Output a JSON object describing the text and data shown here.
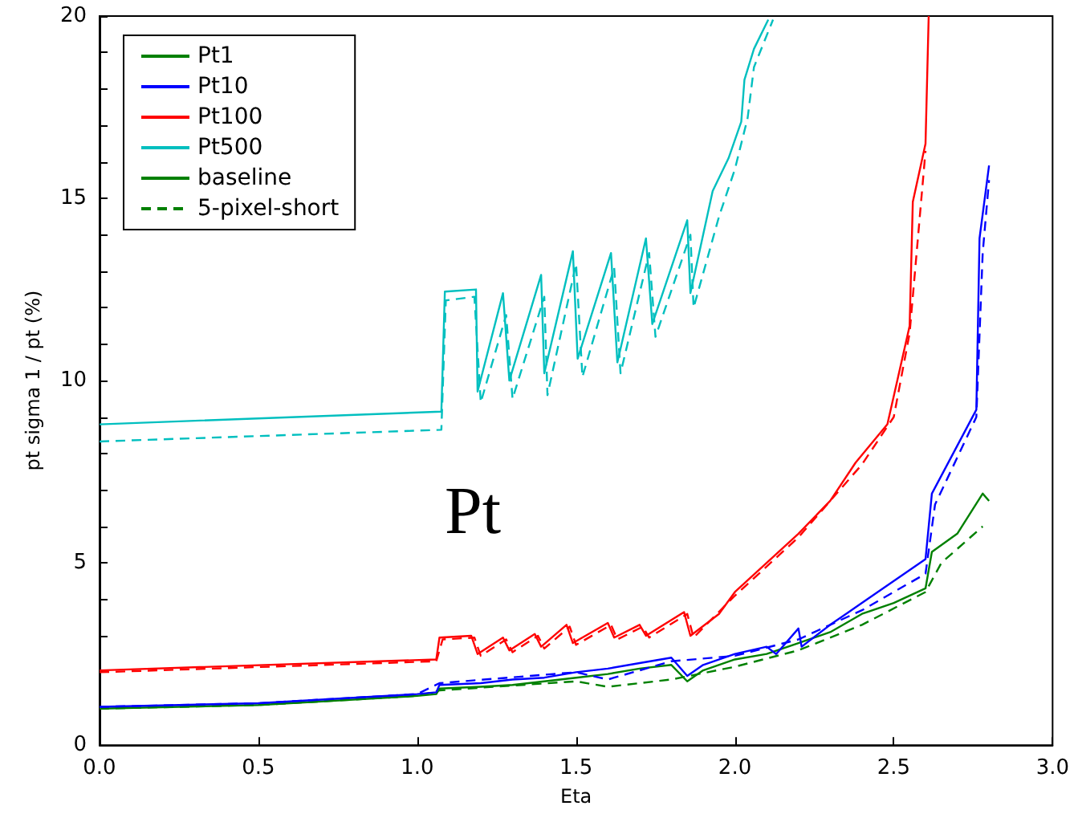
{
  "chart_data": {
    "type": "line",
    "xlabel": "Eta",
    "ylabel": "pt sigma 1 / pt (%)",
    "annotations": [
      "Pt"
    ],
    "xlim": [
      0,
      3
    ],
    "xticks": [
      {
        "value": 0,
        "label": "0.0"
      },
      {
        "value": 0.5,
        "label": "0.5"
      },
      {
        "value": 1,
        "label": "1.0"
      },
      {
        "value": 1.5,
        "label": "1.5"
      },
      {
        "value": 2,
        "label": "2.0"
      },
      {
        "value": 2.5,
        "label": "2.5"
      },
      {
        "value": 3,
        "label": "3.0"
      }
    ],
    "ylim": [
      0,
      20
    ],
    "yticks": [
      0,
      {
        "value": 1,
        "label": null
      },
      {
        "value": 2,
        "label": null
      },
      {
        "value": 3,
        "label": null
      },
      {
        "value": 4,
        "label": null
      },
      5,
      {
        "value": 6,
        "label": null
      },
      {
        "value": 7,
        "label": null
      },
      {
        "value": 8,
        "label": null
      },
      {
        "value": 9,
        "label": null
      },
      10,
      {
        "value": 11,
        "label": null
      },
      {
        "value": 12,
        "label": null
      },
      {
        "value": 13,
        "label": null
      },
      {
        "value": 14,
        "label": null
      },
      15,
      {
        "value": 16,
        "label": null
      },
      {
        "value": 17,
        "label": null
      },
      {
        "value": 18,
        "label": null
      },
      {
        "value": 19,
        "label": null
      },
      20
    ],
    "grid": false,
    "legend": "top left",
    "series": [
      {
        "name": "Pt1",
        "color": "#008000",
        "line_style": "solid",
        "x": [
          0,
          0.5,
          1.0,
          1.06,
          1.07,
          1.2,
          1.3,
          1.4,
          1.5,
          1.6,
          1.7,
          1.8,
          1.85,
          1.9,
          2.0,
          2.1,
          2.2,
          2.3,
          2.4,
          2.5,
          2.6,
          2.62,
          2.7,
          2.78,
          2.8
        ],
        "values": [
          1.0,
          1.1,
          1.35,
          1.4,
          1.55,
          1.6,
          1.65,
          1.75,
          1.85,
          1.95,
          2.1,
          2.2,
          1.75,
          2.05,
          2.35,
          2.5,
          2.8,
          3.1,
          3.6,
          3.9,
          4.3,
          5.3,
          5.8,
          6.9,
          6.7
        ]
      },
      {
        "color": "#008000",
        "line_style": "dashed",
        "x": [
          0,
          0.5,
          1.0,
          1.07,
          1.5,
          1.6,
          1.8,
          2.0,
          2.2,
          2.4,
          2.6,
          2.65,
          2.78
        ],
        "values": [
          1.0,
          1.1,
          1.35,
          1.5,
          1.75,
          1.6,
          1.8,
          2.15,
          2.6,
          3.3,
          4.2,
          5.0,
          6.0
        ]
      },
      {
        "name": "Pt10",
        "color": "#0000ff",
        "line_style": "solid",
        "x": [
          0,
          0.5,
          1.0,
          1.06,
          1.07,
          1.2,
          1.3,
          1.4,
          1.5,
          1.6,
          1.7,
          1.8,
          1.85,
          1.9,
          2.0,
          2.1,
          2.13,
          2.2,
          2.21,
          2.3,
          2.4,
          2.5,
          2.6,
          2.62,
          2.76,
          2.77,
          2.8
        ],
        "values": [
          1.05,
          1.15,
          1.4,
          1.45,
          1.65,
          1.7,
          1.8,
          1.85,
          2.0,
          2.1,
          2.25,
          2.4,
          1.9,
          2.2,
          2.5,
          2.7,
          2.5,
          3.2,
          2.7,
          3.3,
          3.9,
          4.5,
          5.1,
          6.9,
          9.2,
          13.9,
          15.9
        ]
      },
      {
        "color": "#0000ff",
        "line_style": "dashed",
        "x": [
          0,
          0.5,
          1.0,
          1.07,
          1.5,
          1.6,
          1.8,
          2.0,
          2.2,
          2.4,
          2.6,
          2.63,
          2.76,
          2.78,
          2.8
        ],
        "values": [
          1.05,
          1.15,
          1.4,
          1.7,
          2.0,
          1.8,
          2.3,
          2.45,
          2.9,
          3.7,
          4.7,
          6.6,
          9.0,
          13.5,
          15.5
        ]
      },
      {
        "name": "Pt100",
        "color": "#ff0000",
        "line_style": "solid",
        "x": [
          0,
          1.06,
          1.07,
          1.17,
          1.19,
          1.27,
          1.29,
          1.37,
          1.39,
          1.47,
          1.49,
          1.6,
          1.62,
          1.7,
          1.72,
          1.84,
          1.86,
          1.95,
          2.0,
          2.1,
          2.2,
          2.3,
          2.38,
          2.48,
          2.55,
          2.56,
          2.6,
          2.61
        ],
        "values": [
          2.05,
          2.35,
          2.95,
          3.0,
          2.5,
          2.95,
          2.6,
          3.05,
          2.7,
          3.3,
          2.8,
          3.35,
          2.95,
          3.3,
          3.0,
          3.65,
          3.0,
          3.6,
          4.2,
          5.0,
          5.8,
          6.7,
          7.75,
          8.8,
          11.5,
          14.9,
          16.5,
          20
        ]
      },
      {
        "color": "#ff0000",
        "line_style": "dashed",
        "x": [
          0,
          1.06,
          1.08,
          1.18,
          1.2,
          1.28,
          1.3,
          1.38,
          1.4,
          1.48,
          1.5,
          1.61,
          1.63,
          1.71,
          1.73,
          1.85,
          1.87,
          2.0,
          2.2,
          2.4,
          2.5,
          2.55,
          2.6
        ],
        "values": [
          2.0,
          2.3,
          2.9,
          2.95,
          2.45,
          2.9,
          2.55,
          3.0,
          2.65,
          3.25,
          2.75,
          3.3,
          2.9,
          3.25,
          2.95,
          3.6,
          2.95,
          4.1,
          5.7,
          7.7,
          9.0,
          11.3,
          16.3
        ]
      },
      {
        "name": "Pt500",
        "color": "#00bfbf",
        "line_style": "solid",
        "x": [
          0,
          1.076,
          1.087,
          1.185,
          1.19,
          1.27,
          1.29,
          1.39,
          1.4,
          1.49,
          1.505,
          1.61,
          1.63,
          1.72,
          1.74,
          1.85,
          1.86,
          1.93,
          1.98,
          2.02,
          2.03,
          2.06,
          2.105
        ],
        "values": [
          8.8,
          9.15,
          12.44,
          12.5,
          9.7,
          12.4,
          10.0,
          12.9,
          10.2,
          13.55,
          10.6,
          13.5,
          10.5,
          13.9,
          11.55,
          14.4,
          12.4,
          15.2,
          16.1,
          17.1,
          18.25,
          19.1,
          19.9
        ]
      },
      {
        "color": "#00bfbf",
        "line_style": "dashed",
        "x": [
          0,
          1.076,
          1.09,
          1.18,
          1.2,
          1.28,
          1.3,
          1.4,
          1.41,
          1.5,
          1.52,
          1.62,
          1.64,
          1.73,
          1.75,
          1.86,
          1.87,
          1.95,
          2.0,
          2.04,
          2.06,
          2.12
        ],
        "values": [
          8.33,
          8.65,
          12.2,
          12.3,
          9.4,
          11.8,
          9.5,
          12.3,
          9.6,
          13.2,
          10.1,
          13.1,
          10.2,
          13.5,
          11.2,
          14.0,
          12.0,
          14.5,
          15.8,
          17.2,
          18.6,
          19.9
        ]
      },
      {
        "name": "baseline",
        "color": "#008000",
        "line_style": "solid"
      },
      {
        "name": "5-pixel-short",
        "color": "#008000",
        "line_style": "dashed"
      }
    ]
  }
}
